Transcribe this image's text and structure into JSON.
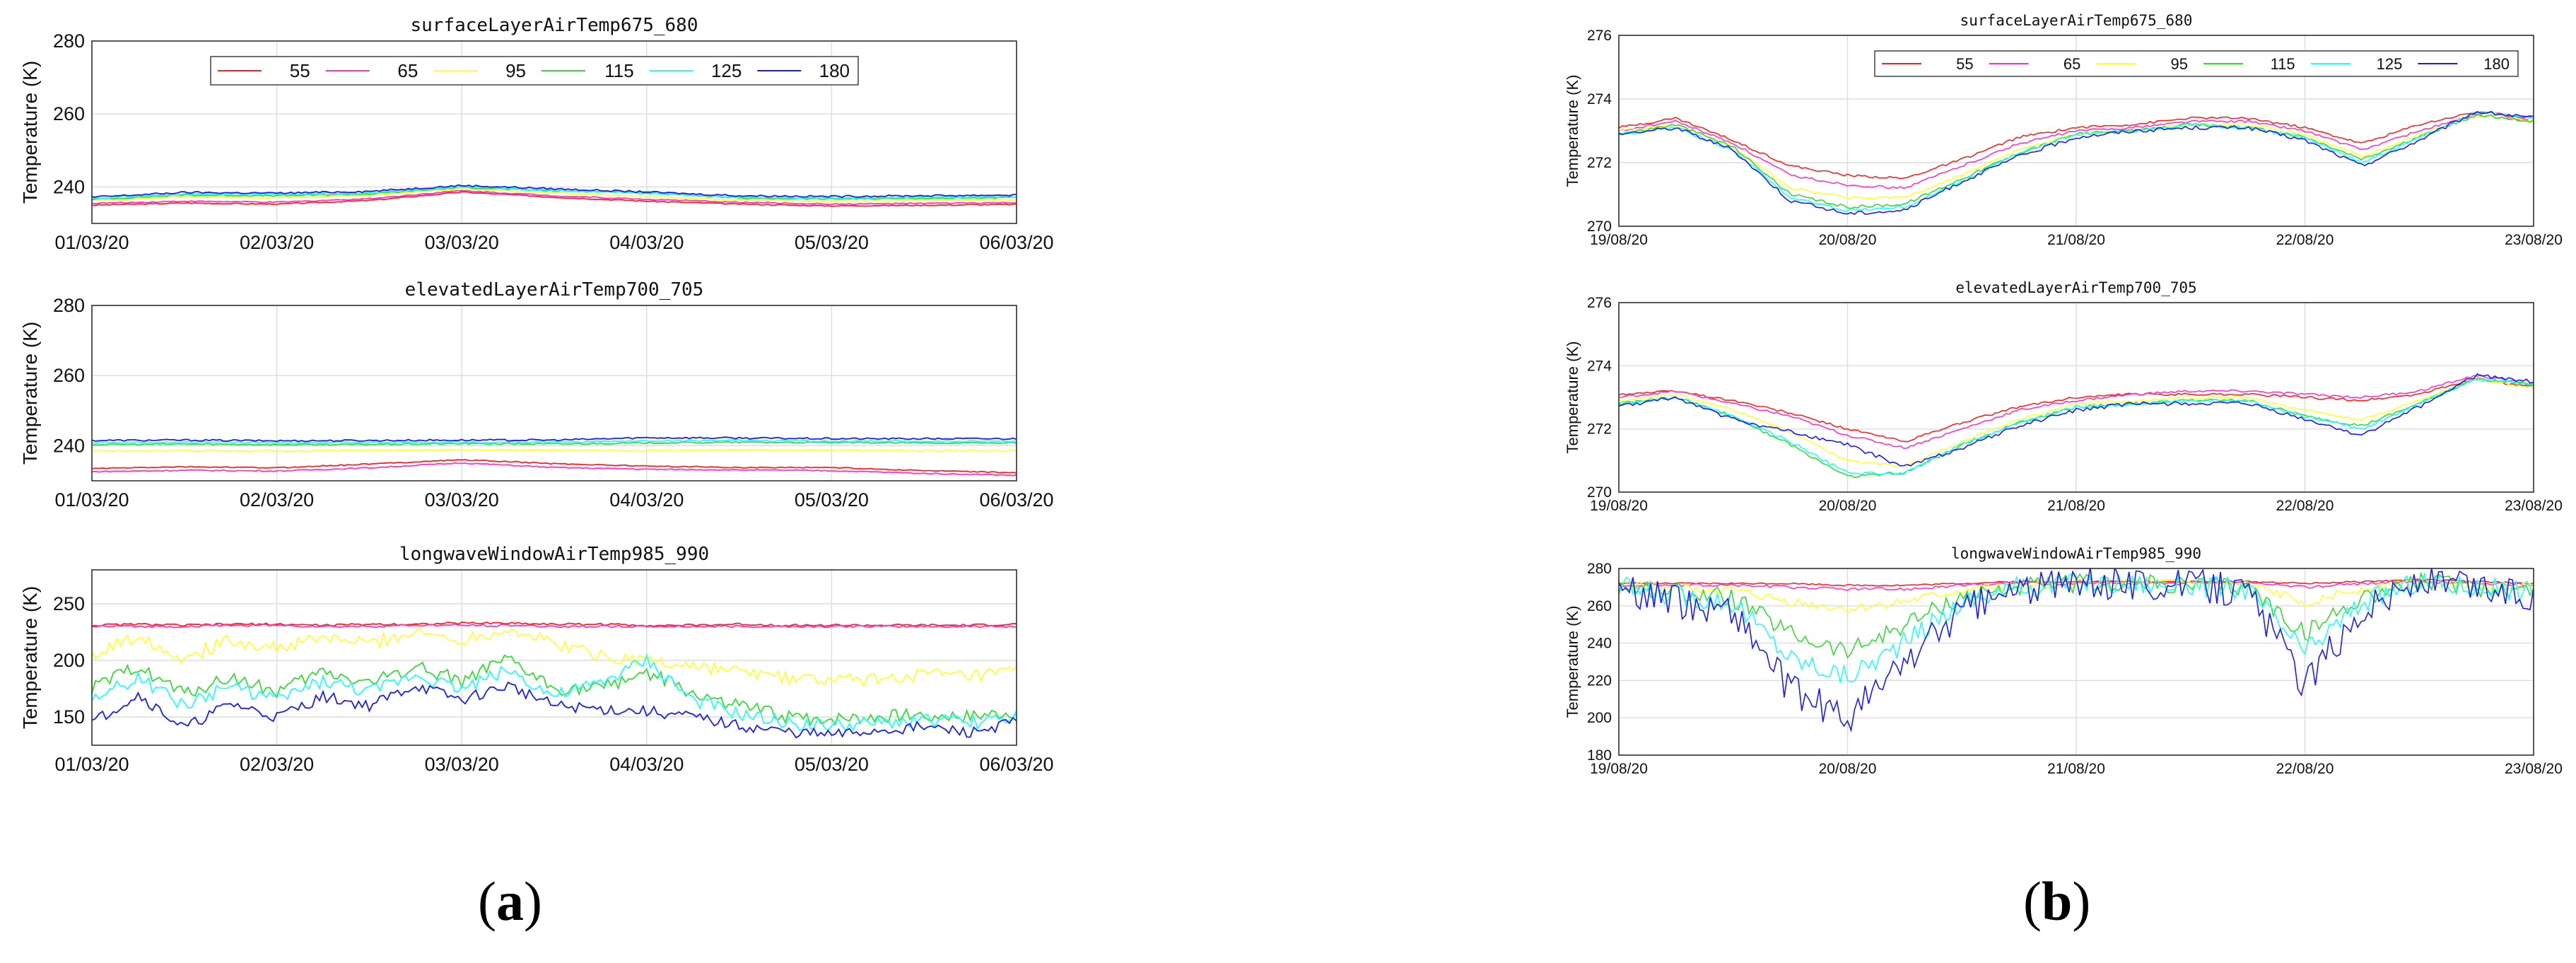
{
  "figure": {
    "label_a_open": "(",
    "label_a_letter": "a",
    "label_a_close": ")",
    "label_b_open": "(",
    "label_b_letter": "b",
    "label_b_close": ")"
  },
  "series_names": [
    "55",
    "65",
    "95",
    "115",
    "125",
    "180"
  ],
  "series_colors": [
    "#ff2020",
    "#ff33cc",
    "#ffff33",
    "#33dd33",
    "#22ffff",
    "#1a1aff"
  ],
  "chart_data": [
    {
      "type": "line",
      "panel": "a",
      "title": "surfaceLayerAirTemp675_680",
      "ylabel": "Temperature (K)",
      "ylim": [
        230,
        280
      ],
      "yticks": [
        240,
        260,
        280
      ],
      "xticks": [
        "01/03/20",
        "02/03/20",
        "03/03/20",
        "04/03/20",
        "05/03/20",
        "06/03/20"
      ],
      "xlim_days": [
        0,
        5
      ],
      "grid": true,
      "legend": "top-center",
      "x": [
        0,
        0.5,
        1,
        1.5,
        2,
        2.5,
        3,
        3.5,
        4,
        4.5,
        5
      ],
      "series": [
        {
          "name": "55",
          "values": [
            235.0,
            235.6,
            235.3,
            236.3,
            238.6,
            237.2,
            236.1,
            235.3,
            234.8,
            235.0,
            235.2
          ]
        },
        {
          "name": "65",
          "values": [
            235.5,
            236.1,
            235.8,
            236.8,
            239.0,
            237.6,
            236.6,
            235.8,
            235.3,
            235.5,
            235.7
          ]
        },
        {
          "name": "95",
          "values": [
            236.3,
            237.3,
            237.0,
            237.7,
            239.6,
            238.4,
            237.3,
            236.4,
            236.1,
            236.3,
            236.5
          ]
        },
        {
          "name": "115",
          "values": [
            236.6,
            237.8,
            237.6,
            238.1,
            239.9,
            238.9,
            238.6,
            236.9,
            236.7,
            236.9,
            237.1
          ]
        },
        {
          "name": "125",
          "values": [
            236.9,
            238.1,
            238.0,
            238.4,
            240.1,
            239.1,
            238.2,
            237.2,
            237.0,
            237.2,
            237.4
          ]
        },
        {
          "name": "180",
          "values": [
            237.2,
            238.5,
            238.3,
            238.8,
            240.4,
            239.5,
            238.6,
            237.6,
            237.4,
            237.6,
            237.8
          ]
        }
      ]
    },
    {
      "type": "line",
      "panel": "a",
      "title": "elevatedLayerAirTemp700_705",
      "ylabel": "Temperature (K)",
      "ylim": [
        230,
        280
      ],
      "yticks": [
        240,
        260,
        280
      ],
      "xticks": [
        "01/03/20",
        "02/03/20",
        "03/03/20",
        "04/03/20",
        "05/03/20",
        "06/03/20"
      ],
      "xlim_days": [
        0,
        5
      ],
      "grid": true,
      "x": [
        0,
        0.5,
        1,
        1.5,
        2,
        2.5,
        3,
        3.5,
        4,
        4.5,
        5
      ],
      "series": [
        {
          "name": "55",
          "values": [
            233.5,
            234.0,
            233.7,
            234.8,
            236.0,
            234.9,
            234.2,
            233.8,
            233.8,
            232.9,
            232.3
          ]
        },
        {
          "name": "65",
          "values": [
            232.6,
            233.0,
            232.8,
            233.7,
            235.1,
            233.8,
            233.3,
            233.1,
            232.9,
            232.1,
            231.6
          ]
        },
        {
          "name": "95",
          "values": [
            238.5,
            238.6,
            238.5,
            238.7,
            238.9,
            238.7,
            238.6,
            238.8,
            238.7,
            238.6,
            238.6
          ]
        },
        {
          "name": "115",
          "values": [
            240.3,
            240.5,
            240.3,
            240.4,
            240.6,
            240.5,
            240.8,
            241.0,
            240.9,
            240.8,
            240.8
          ]
        },
        {
          "name": "125",
          "values": [
            240.8,
            241.0,
            240.9,
            240.9,
            241.0,
            241.0,
            241.4,
            241.5,
            241.3,
            241.3,
            241.3
          ]
        },
        {
          "name": "180",
          "values": [
            241.5,
            241.6,
            241.4,
            241.5,
            241.6,
            241.6,
            242.3,
            242.2,
            242.0,
            242.0,
            242.0
          ]
        }
      ]
    },
    {
      "type": "line",
      "panel": "a",
      "title": "longwaveWindowAirTemp985_990",
      "ylabel": "Temperature (K)",
      "ylim": [
        125,
        280
      ],
      "yticks": [
        150,
        200,
        250
      ],
      "xticks": [
        "01/03/20",
        "02/03/20",
        "03/03/20",
        "04/03/20",
        "05/03/20",
        "06/03/20"
      ],
      "xlim_days": [
        0,
        5
      ],
      "grid": true,
      "x": [
        0,
        0.25,
        0.5,
        0.75,
        1,
        1.25,
        1.5,
        1.75,
        2,
        2.25,
        2.5,
        2.75,
        3,
        3.25,
        3.5,
        3.75,
        4,
        4.25,
        4.5,
        4.75,
        5
      ],
      "series": [
        {
          "name": "55",
          "values": [
            231,
            232,
            231,
            232,
            232,
            231,
            232,
            232,
            233,
            233,
            232,
            232,
            231,
            231,
            232,
            231,
            231,
            231,
            231,
            231,
            232
          ]
        },
        {
          "name": "65",
          "values": [
            230,
            230,
            230,
            231,
            231,
            230,
            230,
            231,
            231,
            231,
            230,
            230,
            230,
            230,
            230,
            230,
            230,
            230,
            230,
            230,
            230
          ]
        },
        {
          "name": "95",
          "values": [
            205,
            222,
            202,
            218,
            210,
            220,
            215,
            225,
            218,
            228,
            215,
            205,
            200,
            195,
            190,
            185,
            182,
            183,
            188,
            185,
            190
          ]
        },
        {
          "name": "115",
          "values": [
            175,
            195,
            170,
            185,
            172,
            190,
            180,
            195,
            182,
            200,
            175,
            175,
            190,
            170,
            160,
            150,
            148,
            150,
            152,
            150,
            155
          ]
        },
        {
          "name": "125",
          "values": [
            165,
            185,
            160,
            178,
            165,
            182,
            172,
            188,
            175,
            192,
            168,
            180,
            200,
            165,
            152,
            145,
            142,
            144,
            148,
            145,
            150
          ]
        },
        {
          "name": "180",
          "values": [
            145,
            170,
            140,
            162,
            150,
            168,
            160,
            178,
            165,
            178,
            160,
            157,
            155,
            150,
            142,
            137,
            134,
            138,
            141,
            136,
            146
          ]
        }
      ]
    },
    {
      "type": "line",
      "panel": "b",
      "title": "surfaceLayerAirTemp675_680",
      "ylabel": "Temperature (K)",
      "ylim": [
        270,
        276
      ],
      "yticks": [
        270,
        272,
        274,
        276
      ],
      "xticks": [
        "19/08/20",
        "20/08/20",
        "21/08/20",
        "22/08/20",
        "23/08/20"
      ],
      "xlim_days": [
        0,
        4
      ],
      "grid": true,
      "legend": "top-center",
      "x": [
        0,
        0.25,
        0.5,
        0.75,
        1,
        1.25,
        1.5,
        1.75,
        2,
        2.25,
        2.5,
        2.75,
        3,
        3.25,
        3.5,
        3.75,
        4
      ],
      "series": [
        {
          "name": "55",
          "values": [
            273.1,
            273.4,
            272.7,
            271.9,
            271.6,
            271.5,
            272.1,
            272.8,
            273.1,
            273.2,
            273.4,
            273.4,
            273.1,
            272.6,
            273.2,
            273.6,
            273.4
          ]
        },
        {
          "name": "65",
          "values": [
            273.0,
            273.3,
            272.6,
            271.6,
            271.3,
            271.2,
            271.9,
            272.6,
            273.0,
            273.1,
            273.3,
            273.3,
            273.0,
            272.4,
            273.0,
            273.5,
            273.3
          ]
        },
        {
          "name": "95",
          "values": [
            273.0,
            273.2,
            272.5,
            271.2,
            270.9,
            270.9,
            271.6,
            272.4,
            272.9,
            273.0,
            273.2,
            273.2,
            272.9,
            272.2,
            272.9,
            273.5,
            273.3
          ]
        },
        {
          "name": "115",
          "values": [
            272.9,
            273.2,
            272.5,
            271.0,
            270.6,
            270.7,
            271.5,
            272.3,
            272.9,
            273.0,
            273.2,
            273.1,
            272.8,
            272.1,
            272.8,
            273.5,
            273.3
          ]
        },
        {
          "name": "125",
          "values": [
            272.9,
            273.1,
            272.4,
            270.9,
            270.5,
            270.6,
            271.4,
            272.3,
            272.9,
            273.0,
            273.2,
            273.1,
            272.8,
            272.0,
            272.8,
            273.6,
            273.4
          ]
        },
        {
          "name": "180",
          "values": [
            272.9,
            273.1,
            272.4,
            270.8,
            270.4,
            270.5,
            271.4,
            272.2,
            272.8,
            273.0,
            273.1,
            273.1,
            272.7,
            271.9,
            272.7,
            273.6,
            273.4
          ]
        }
      ]
    },
    {
      "type": "line",
      "panel": "b",
      "title": "elevatedLayerAirTemp700_705",
      "ylabel": "Temperature (K)",
      "ylim": [
        270,
        276
      ],
      "yticks": [
        270,
        272,
        274,
        276
      ],
      "xticks": [
        "19/08/20",
        "20/08/20",
        "21/08/20",
        "22/08/20",
        "23/08/20"
      ],
      "xlim_days": [
        0,
        4
      ],
      "grid": true,
      "x": [
        0,
        0.25,
        0.5,
        0.75,
        1,
        1.25,
        1.5,
        1.75,
        2,
        2.25,
        2.5,
        2.75,
        3,
        3.25,
        3.5,
        3.75,
        4
      ],
      "series": [
        {
          "name": "55",
          "values": [
            273.1,
            273.2,
            272.9,
            272.5,
            272.0,
            271.6,
            272.2,
            272.7,
            273.0,
            273.1,
            273.1,
            273.1,
            273.0,
            272.9,
            273.1,
            273.6,
            273.3
          ]
        },
        {
          "name": "65",
          "values": [
            273.0,
            273.2,
            272.8,
            272.4,
            271.8,
            271.4,
            272.0,
            272.6,
            272.9,
            273.1,
            273.2,
            273.2,
            273.1,
            273.0,
            273.2,
            273.7,
            273.4
          ]
        },
        {
          "name": "95",
          "values": [
            272.9,
            273.1,
            272.6,
            271.9,
            271.0,
            270.8,
            271.6,
            272.3,
            272.8,
            272.9,
            273.0,
            273.0,
            272.6,
            272.3,
            272.9,
            273.6,
            273.3
          ]
        },
        {
          "name": "115",
          "values": [
            272.8,
            273.0,
            272.4,
            271.5,
            270.5,
            270.6,
            271.5,
            272.2,
            272.7,
            272.8,
            272.9,
            272.9,
            272.4,
            272.1,
            272.8,
            273.6,
            273.4
          ]
        },
        {
          "name": "125",
          "values": [
            272.8,
            273.0,
            272.4,
            271.6,
            270.6,
            270.6,
            271.5,
            272.2,
            272.7,
            272.8,
            272.9,
            272.9,
            272.4,
            272.0,
            272.8,
            273.6,
            273.4
          ]
        },
        {
          "name": "180",
          "values": [
            272.7,
            273.0,
            272.3,
            271.9,
            271.5,
            270.8,
            271.4,
            272.1,
            272.6,
            272.8,
            272.8,
            272.8,
            272.3,
            271.8,
            272.7,
            273.7,
            273.5
          ]
        }
      ]
    },
    {
      "type": "line",
      "panel": "b",
      "title": "longwaveWindowAirTemp985_990",
      "ylabel": "Temperature (K)",
      "ylim": [
        180,
        280
      ],
      "yticks": [
        180,
        200,
        220,
        240,
        260,
        280
      ],
      "xticks": [
        "19/08/20",
        "20/08/20",
        "21/08/20",
        "22/08/20",
        "23/08/20"
      ],
      "xlim_days": [
        0,
        4
      ],
      "grid": true,
      "x": [
        0,
        0.25,
        0.5,
        0.75,
        1,
        1.25,
        1.5,
        1.75,
        2,
        2.25,
        2.5,
        2.75,
        3,
        3.25,
        3.5,
        3.75,
        4
      ],
      "series": [
        {
          "name": "55",
          "values": [
            272,
            272,
            272,
            272,
            271,
            271,
            272,
            273,
            273,
            273,
            273,
            273,
            272,
            273,
            274,
            273,
            272
          ]
        },
        {
          "name": "65",
          "values": [
            271,
            271,
            271,
            270,
            269,
            269,
            271,
            272,
            272,
            272,
            272,
            272,
            270,
            272,
            273,
            272,
            271
          ]
        },
        {
          "name": "95",
          "values": [
            271,
            270,
            268,
            262,
            258,
            262,
            268,
            271,
            272,
            272,
            272,
            271,
            262,
            269,
            273,
            271,
            270
          ]
        },
        {
          "name": "115",
          "values": [
            270,
            268,
            264,
            245,
            235,
            250,
            265,
            270,
            272,
            272,
            271,
            270,
            245,
            265,
            273,
            270,
            268
          ]
        },
        {
          "name": "125",
          "values": [
            270,
            266,
            262,
            232,
            222,
            240,
            262,
            270,
            272,
            272,
            271,
            269,
            235,
            262,
            273,
            270,
            268
          ]
        },
        {
          "name": "180",
          "values": [
            270,
            262,
            258,
            215,
            200,
            230,
            258,
            269,
            272,
            272,
            271,
            268,
            218,
            258,
            273,
            270,
            265
          ]
        }
      ]
    }
  ]
}
